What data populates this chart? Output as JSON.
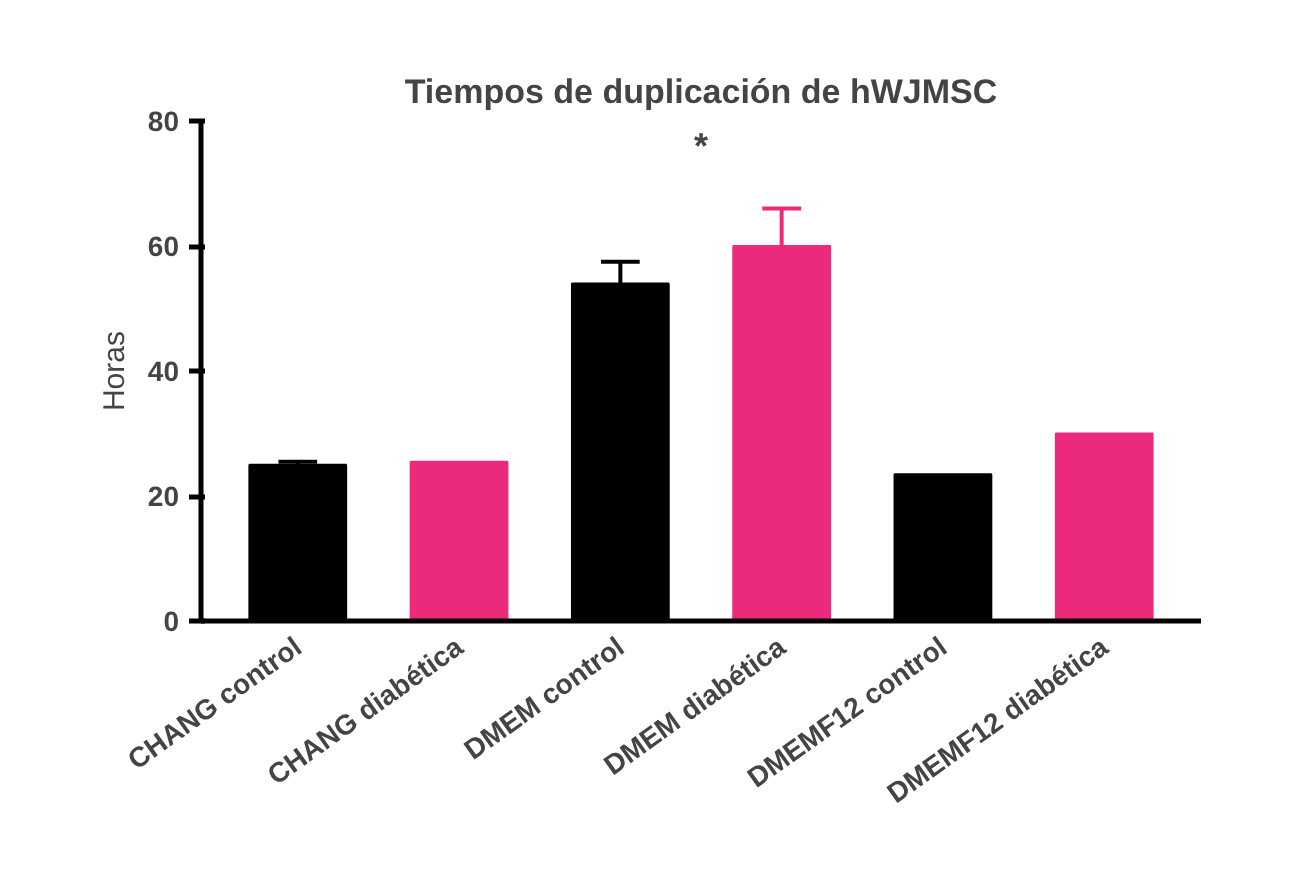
{
  "chart_data": {
    "type": "bar",
    "title": "Tiempos de duplicación de hWJMSC",
    "ylabel": "Horas",
    "categories": [
      "CHANG control",
      "CHANG diabética",
      "DMEM control",
      "DMEM diabética",
      "DMEMF12 control",
      "DMEMF12 diabética"
    ],
    "values": [
      25,
      25.5,
      54,
      60,
      23.5,
      30
    ],
    "errors": [
      0.5,
      null,
      3.5,
      6,
      null,
      null
    ],
    "colors": [
      "#000000",
      "#ec2a7b",
      "#000000",
      "#ec2a7b",
      "#000000",
      "#ec2a7b"
    ],
    "ylim": [
      0,
      80
    ],
    "yticks": [
      0,
      20,
      40,
      60,
      80
    ],
    "grid": false,
    "annotations": [
      "*"
    ]
  }
}
